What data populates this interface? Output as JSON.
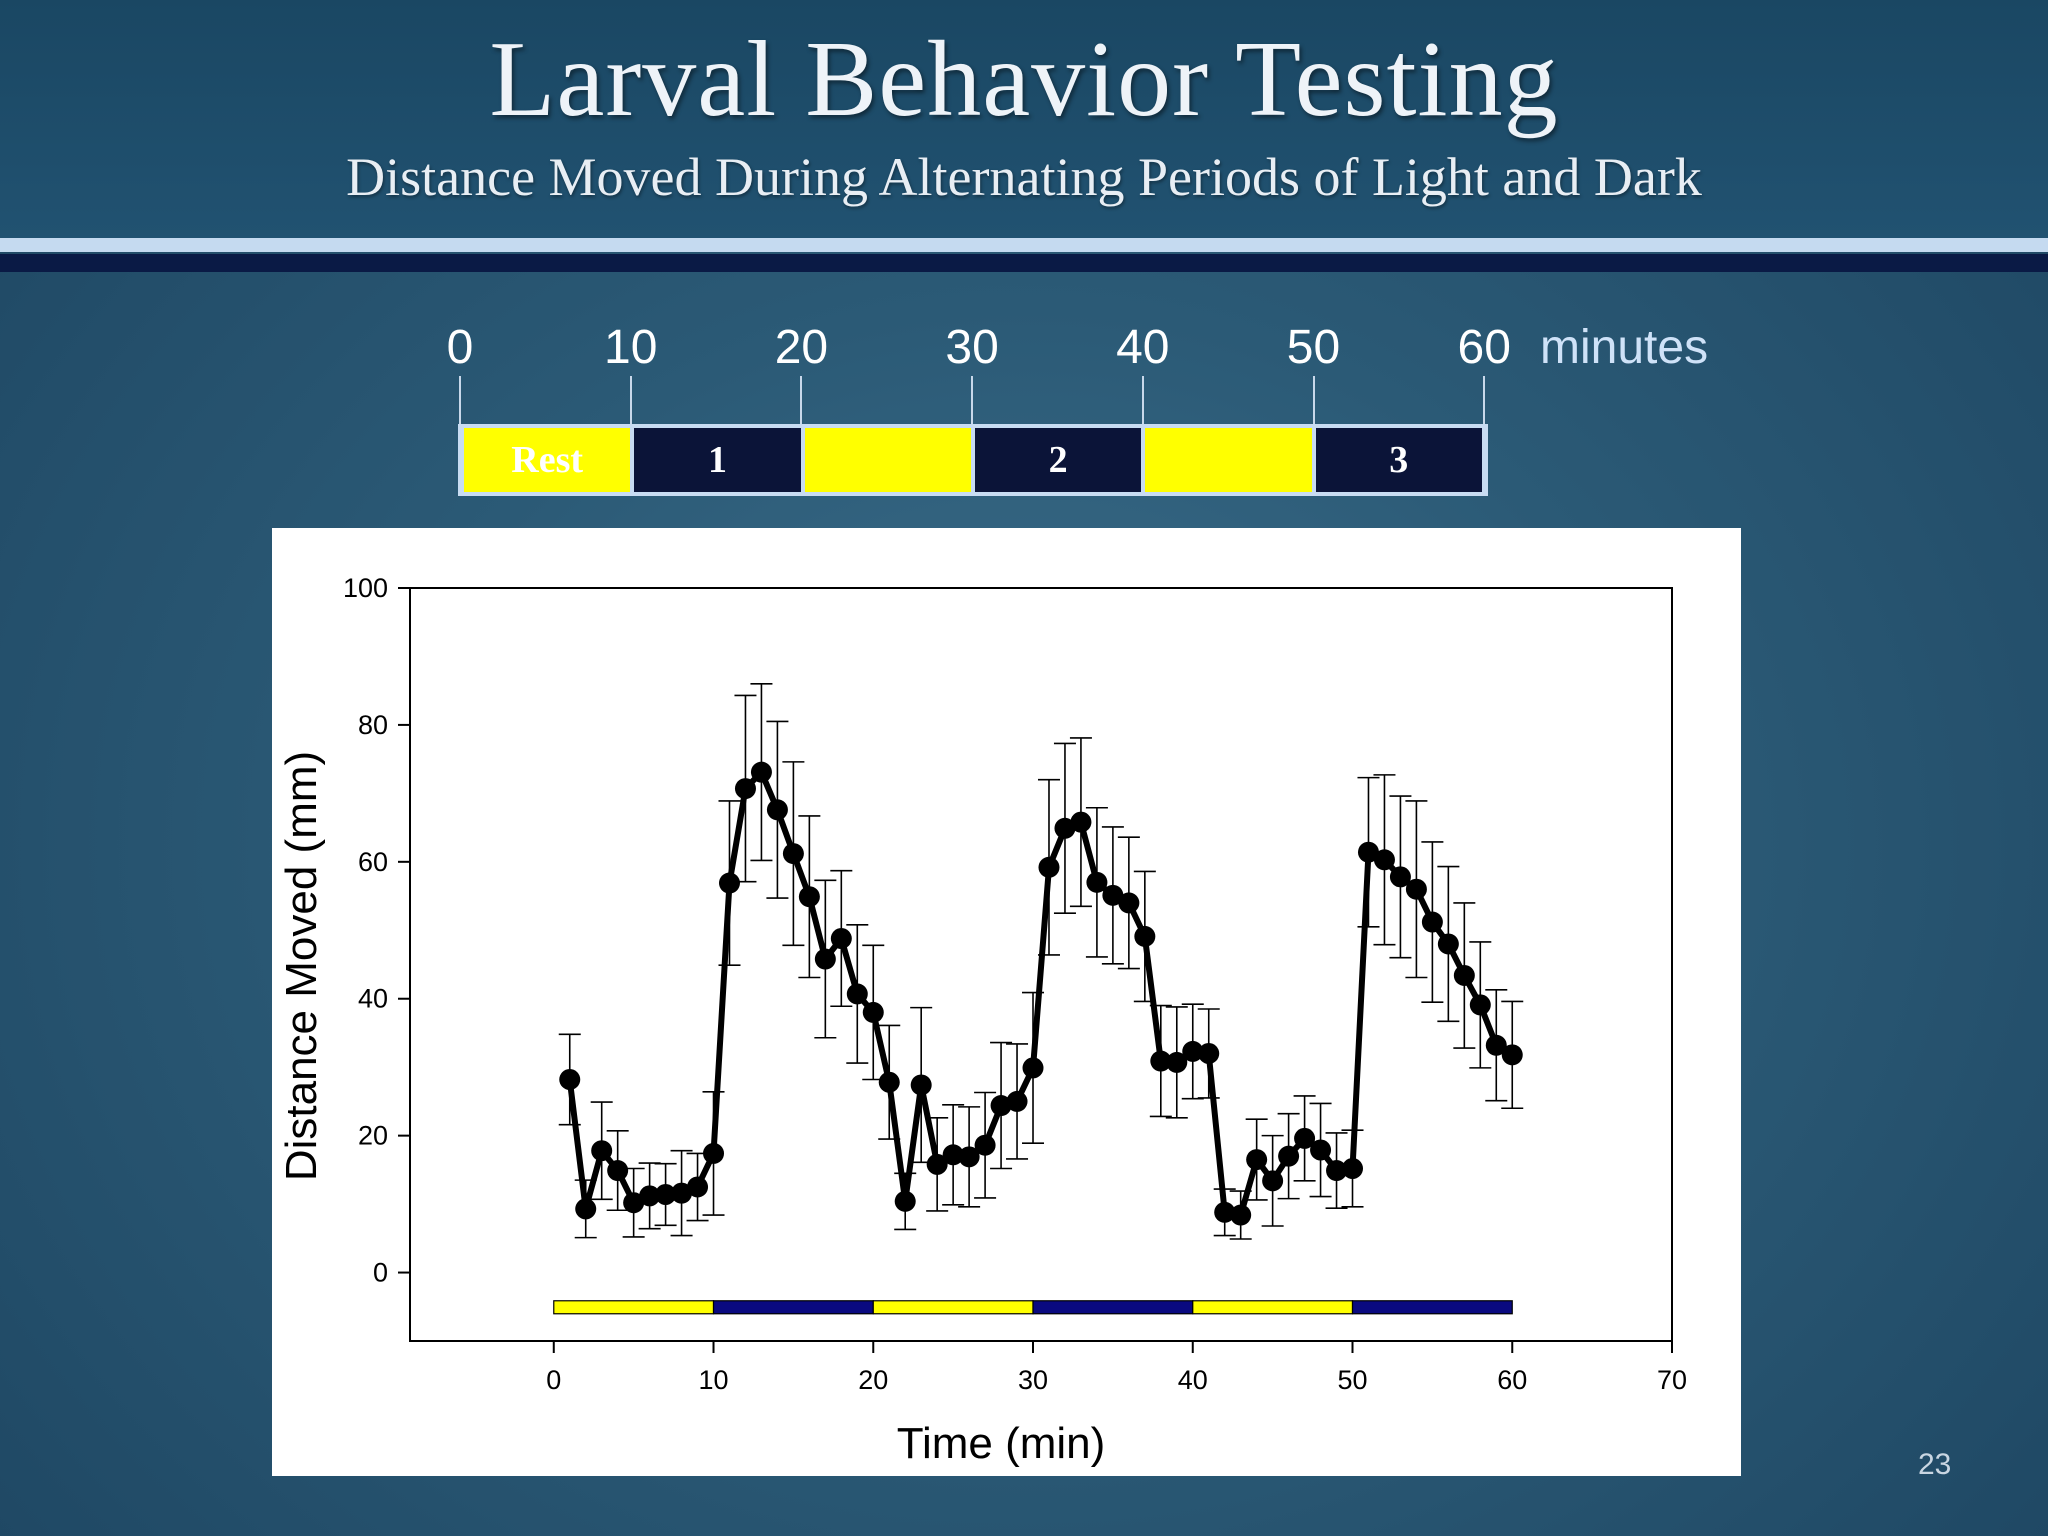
{
  "slide": {
    "title": "Larval Behavior Testing",
    "subtitle": "Distance Moved During Alternating Periods of Light and Dark",
    "slide_number": "23"
  },
  "timeline": {
    "ticks": [
      "0",
      "10",
      "20",
      "30",
      "40",
      "50",
      "60"
    ],
    "unit": "minutes",
    "segments": [
      {
        "label": "Rest",
        "phase": "light"
      },
      {
        "label": "1",
        "phase": "dark"
      },
      {
        "label": "",
        "phase": "light"
      },
      {
        "label": "2",
        "phase": "dark"
      },
      {
        "label": "",
        "phase": "light"
      },
      {
        "label": "3",
        "phase": "dark"
      }
    ]
  },
  "colors": {
    "light_phase": "#ffff00",
    "dark_phase": "#0b1438",
    "chart_phase_dark": "#0a0a80",
    "line": "#000000"
  },
  "chart_data": {
    "type": "line",
    "title": "",
    "xlabel": "Time (min)",
    "ylabel": "Distance Moved (mm)",
    "xlim": [
      -9,
      70
    ],
    "ylim": [
      -10,
      100
    ],
    "xticks": [
      0,
      10,
      20,
      30,
      40,
      50,
      60,
      70
    ],
    "yticks": [
      0,
      20,
      40,
      60,
      80,
      100
    ],
    "grid": false,
    "legend": "none",
    "phase_bar": [
      {
        "start": 0,
        "end": 10,
        "phase": "light"
      },
      {
        "start": 10,
        "end": 20,
        "phase": "dark"
      },
      {
        "start": 20,
        "end": 30,
        "phase": "light"
      },
      {
        "start": 30,
        "end": 40,
        "phase": "dark"
      },
      {
        "start": 40,
        "end": 50,
        "phase": "light"
      },
      {
        "start": 50,
        "end": 60,
        "phase": "dark"
      }
    ],
    "x": [
      1,
      2,
      3,
      4,
      5,
      6,
      7,
      8,
      9,
      10,
      11,
      12,
      13,
      14,
      15,
      16,
      17,
      18,
      19,
      20,
      21,
      22,
      23,
      24,
      25,
      26,
      27,
      28,
      29,
      30,
      31,
      32,
      33,
      34,
      35,
      36,
      37,
      38,
      39,
      40,
      41,
      42,
      43,
      44,
      45,
      46,
      47,
      48,
      49,
      50,
      51,
      52,
      53,
      54,
      55,
      56,
      57,
      58,
      59,
      60
    ],
    "y": [
      28.2,
      9.3,
      17.8,
      14.9,
      10.2,
      11.2,
      11.4,
      11.6,
      12.5,
      17.4,
      56.9,
      70.7,
      73.1,
      67.6,
      61.2,
      54.9,
      45.8,
      48.8,
      40.7,
      38.0,
      27.8,
      10.4,
      27.4,
      15.8,
      17.2,
      16.9,
      18.6,
      24.4,
      25.0,
      29.9,
      59.2,
      64.9,
      65.8,
      57.0,
      55.1,
      54.0,
      49.1,
      30.9,
      30.7,
      32.3,
      32.0,
      8.8,
      8.4,
      16.5,
      13.4,
      17.0,
      19.6,
      17.9,
      14.9,
      15.2,
      61.4,
      60.3,
      57.8,
      56.0,
      51.2,
      48.0,
      43.4,
      39.1,
      33.2,
      31.8
    ],
    "err": [
      6.6,
      4.2,
      7.1,
      5.8,
      5.0,
      4.8,
      4.5,
      6.2,
      4.9,
      9.0,
      12.0,
      13.6,
      12.9,
      12.9,
      13.4,
      11.8,
      11.5,
      9.9,
      10.1,
      9.8,
      8.3,
      4.1,
      11.3,
      6.8,
      7.3,
      7.3,
      7.7,
      9.2,
      8.4,
      11.0,
      12.8,
      12.4,
      12.3,
      10.9,
      10.0,
      9.6,
      9.5,
      8.1,
      8.1,
      6.9,
      6.5,
      3.4,
      3.5,
      5.9,
      6.6,
      6.2,
      6.2,
      6.8,
      5.5,
      5.6,
      10.9,
      12.4,
      11.8,
      12.9,
      11.7,
      11.3,
      10.6,
      9.2,
      8.1,
      7.8
    ]
  }
}
